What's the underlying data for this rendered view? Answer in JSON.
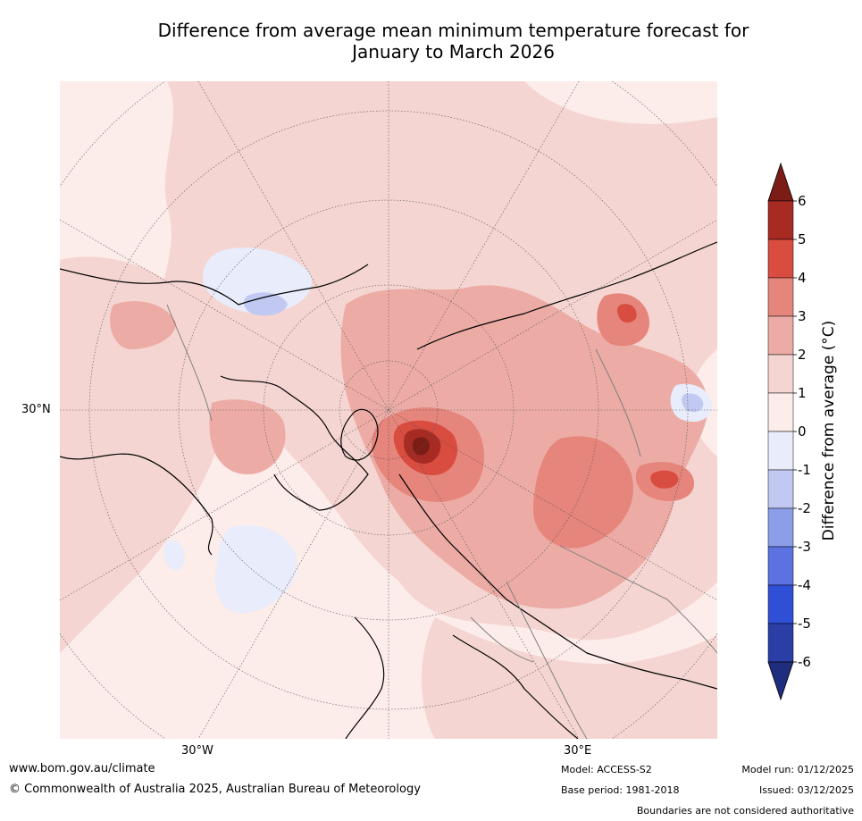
{
  "title": {
    "line1": "Difference from average mean minimum temperature forecast for",
    "line2": "January to March 2026"
  },
  "map": {
    "projection": "north-polar stereographic",
    "lat_label": "30°N",
    "lon_labels": [
      "30°W",
      "30°E"
    ]
  },
  "colorbar": {
    "title": "Difference from average (°C)",
    "ticks": [
      "6",
      "5",
      "4",
      "3",
      "2",
      "1",
      "0",
      "-1",
      "-2",
      "-3",
      "-4",
      "-5",
      "-6"
    ],
    "colors_top_to_bottom": [
      "#7b1d16",
      "#a72b23",
      "#d94c40",
      "#e6857b",
      "#ecaca5",
      "#f5d5d1",
      "#fcecea",
      "#e8ecfb",
      "#c1c9f2",
      "#8d9ee9",
      "#5b72e0",
      "#2e4fd6",
      "#2a3ea6",
      "#1f2d7e"
    ]
  },
  "footer": {
    "website": "www.bom.gov.au/climate",
    "copyright": "© Commonwealth of Australia 2025, Australian Bureau of Meteorology",
    "model": "Model: ACCESS-S2",
    "base_period": "Base period: 1981-2018",
    "model_run": "Model run: 01/12/2025",
    "issued": "Issued: 03/12/2025",
    "disclaimer": "Boundaries are not considered authoritative"
  }
}
